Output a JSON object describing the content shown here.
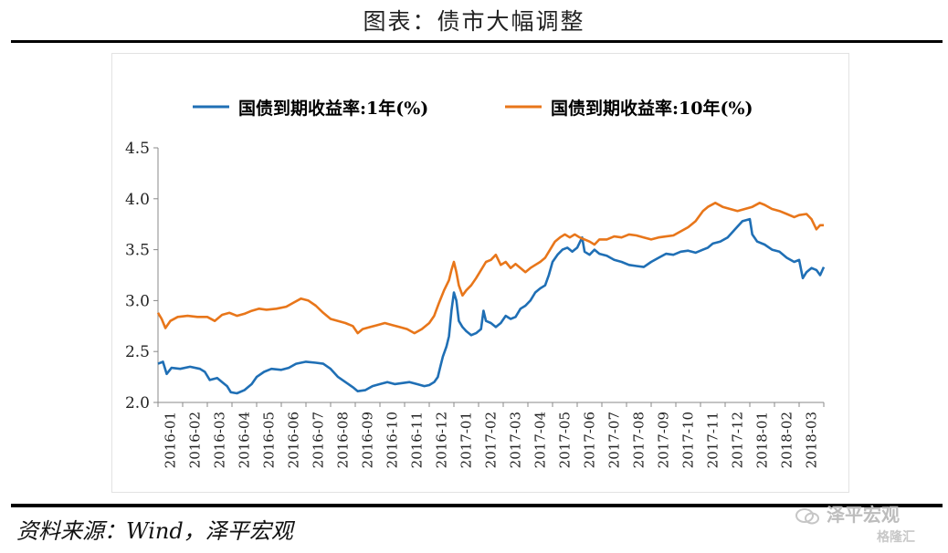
{
  "page": {
    "title": "图表：债市大幅调整",
    "source": "资料来源：Wind，泽平宏观",
    "watermark": "泽平宏观",
    "watermark_sub": "格隆汇"
  },
  "colors": {
    "series1": "#1f6fb5",
    "series2": "#e8761a"
  },
  "chart_data": {
    "type": "line",
    "title": "",
    "xlabel": "",
    "ylabel": "",
    "ylim": [
      2.0,
      4.5
    ],
    "yticks": [
      "2.0",
      "2.5",
      "3.0",
      "3.5",
      "4.0",
      "4.5"
    ],
    "categories": [
      "2016-01",
      "2016-02",
      "2016-03",
      "2016-04",
      "2016-05",
      "2016-06",
      "2016-07",
      "2016-08",
      "2016-09",
      "2016-10",
      "2016-11",
      "2016-12",
      "2017-01",
      "2017-02",
      "2017-03",
      "2017-04",
      "2017-05",
      "2017-06",
      "2017-07",
      "2017-08",
      "2017-09",
      "2017-10",
      "2017-11",
      "2017-12",
      "2018-01",
      "2018-02",
      "2018-03"
    ],
    "legend_position": "top",
    "series": [
      {
        "name": "国债到期收益率:1年(%)",
        "color": "#1f6fb5",
        "points": [
          [
            0.0,
            2.38
          ],
          [
            0.2,
            2.4
          ],
          [
            0.35,
            2.28
          ],
          [
            0.55,
            2.34
          ],
          [
            0.9,
            2.33
          ],
          [
            1.3,
            2.35
          ],
          [
            1.7,
            2.33
          ],
          [
            1.9,
            2.3
          ],
          [
            2.1,
            2.22
          ],
          [
            2.4,
            2.24
          ],
          [
            2.6,
            2.2
          ],
          [
            2.8,
            2.16
          ],
          [
            2.95,
            2.1
          ],
          [
            3.2,
            2.09
          ],
          [
            3.5,
            2.12
          ],
          [
            3.8,
            2.18
          ],
          [
            4.0,
            2.25
          ],
          [
            4.3,
            2.3
          ],
          [
            4.6,
            2.33
          ],
          [
            5.0,
            2.32
          ],
          [
            5.3,
            2.34
          ],
          [
            5.6,
            2.38
          ],
          [
            6.0,
            2.4
          ],
          [
            6.4,
            2.39
          ],
          [
            6.7,
            2.38
          ],
          [
            7.0,
            2.33
          ],
          [
            7.3,
            2.25
          ],
          [
            7.6,
            2.2
          ],
          [
            7.9,
            2.15
          ],
          [
            8.1,
            2.11
          ],
          [
            8.4,
            2.12
          ],
          [
            8.7,
            2.16
          ],
          [
            9.0,
            2.18
          ],
          [
            9.3,
            2.2
          ],
          [
            9.6,
            2.18
          ],
          [
            9.9,
            2.19
          ],
          [
            10.2,
            2.2
          ],
          [
            10.5,
            2.18
          ],
          [
            10.8,
            2.16
          ],
          [
            11.0,
            2.17
          ],
          [
            11.2,
            2.2
          ],
          [
            11.35,
            2.25
          ],
          [
            11.45,
            2.35
          ],
          [
            11.55,
            2.45
          ],
          [
            11.7,
            2.55
          ],
          [
            11.8,
            2.65
          ],
          [
            11.9,
            2.9
          ],
          [
            12.0,
            3.08
          ],
          [
            12.1,
            3.0
          ],
          [
            12.2,
            2.8
          ],
          [
            12.35,
            2.74
          ],
          [
            12.5,
            2.7
          ],
          [
            12.7,
            2.66
          ],
          [
            12.9,
            2.68
          ],
          [
            13.1,
            2.72
          ],
          [
            13.2,
            2.9
          ],
          [
            13.3,
            2.8
          ],
          [
            13.5,
            2.78
          ],
          [
            13.7,
            2.74
          ],
          [
            13.9,
            2.78
          ],
          [
            14.1,
            2.85
          ],
          [
            14.3,
            2.82
          ],
          [
            14.5,
            2.84
          ],
          [
            14.7,
            2.92
          ],
          [
            14.9,
            2.95
          ],
          [
            15.1,
            3.0
          ],
          [
            15.3,
            3.08
          ],
          [
            15.5,
            3.12
          ],
          [
            15.7,
            3.15
          ],
          [
            15.85,
            3.25
          ],
          [
            16.0,
            3.38
          ],
          [
            16.2,
            3.45
          ],
          [
            16.4,
            3.5
          ],
          [
            16.6,
            3.52
          ],
          [
            16.8,
            3.48
          ],
          [
            17.0,
            3.52
          ],
          [
            17.2,
            3.62
          ],
          [
            17.3,
            3.48
          ],
          [
            17.5,
            3.45
          ],
          [
            17.7,
            3.5
          ],
          [
            17.9,
            3.46
          ],
          [
            18.2,
            3.44
          ],
          [
            18.5,
            3.4
          ],
          [
            18.8,
            3.38
          ],
          [
            19.1,
            3.35
          ],
          [
            19.4,
            3.34
          ],
          [
            19.7,
            3.33
          ],
          [
            20.0,
            3.38
          ],
          [
            20.3,
            3.42
          ],
          [
            20.6,
            3.46
          ],
          [
            20.9,
            3.45
          ],
          [
            21.2,
            3.48
          ],
          [
            21.5,
            3.49
          ],
          [
            21.8,
            3.47
          ],
          [
            22.1,
            3.5
          ],
          [
            22.3,
            3.52
          ],
          [
            22.5,
            3.56
          ],
          [
            22.8,
            3.58
          ],
          [
            23.1,
            3.62
          ],
          [
            23.4,
            3.7
          ],
          [
            23.7,
            3.78
          ],
          [
            24.0,
            3.8
          ],
          [
            24.1,
            3.65
          ],
          [
            24.3,
            3.58
          ],
          [
            24.6,
            3.55
          ],
          [
            24.9,
            3.5
          ],
          [
            25.2,
            3.48
          ],
          [
            25.5,
            3.42
          ],
          [
            25.8,
            3.38
          ],
          [
            26.0,
            3.4
          ],
          [
            26.15,
            3.22
          ],
          [
            26.3,
            3.28
          ],
          [
            26.5,
            3.32
          ],
          [
            26.7,
            3.3
          ],
          [
            26.85,
            3.25
          ],
          [
            27.0,
            3.33
          ]
        ]
      },
      {
        "name": "国债到期收益率:10年(%)",
        "color": "#e8761a",
        "points": [
          [
            0.0,
            2.88
          ],
          [
            0.15,
            2.82
          ],
          [
            0.3,
            2.73
          ],
          [
            0.5,
            2.8
          ],
          [
            0.8,
            2.84
          ],
          [
            1.2,
            2.85
          ],
          [
            1.6,
            2.84
          ],
          [
            2.0,
            2.84
          ],
          [
            2.3,
            2.8
          ],
          [
            2.6,
            2.86
          ],
          [
            2.9,
            2.88
          ],
          [
            3.2,
            2.85
          ],
          [
            3.5,
            2.87
          ],
          [
            3.8,
            2.9
          ],
          [
            4.1,
            2.92
          ],
          [
            4.4,
            2.91
          ],
          [
            4.8,
            2.92
          ],
          [
            5.2,
            2.94
          ],
          [
            5.5,
            2.98
          ],
          [
            5.8,
            3.02
          ],
          [
            6.1,
            3.0
          ],
          [
            6.4,
            2.95
          ],
          [
            6.7,
            2.88
          ],
          [
            7.0,
            2.82
          ],
          [
            7.3,
            2.8
          ],
          [
            7.6,
            2.78
          ],
          [
            7.9,
            2.75
          ],
          [
            8.1,
            2.68
          ],
          [
            8.3,
            2.72
          ],
          [
            8.6,
            2.74
          ],
          [
            8.9,
            2.76
          ],
          [
            9.2,
            2.78
          ],
          [
            9.5,
            2.76
          ],
          [
            9.8,
            2.74
          ],
          [
            10.1,
            2.72
          ],
          [
            10.4,
            2.68
          ],
          [
            10.7,
            2.72
          ],
          [
            11.0,
            2.78
          ],
          [
            11.2,
            2.85
          ],
          [
            11.4,
            2.98
          ],
          [
            11.6,
            3.1
          ],
          [
            11.8,
            3.2
          ],
          [
            11.9,
            3.3
          ],
          [
            12.0,
            3.38
          ],
          [
            12.1,
            3.28
          ],
          [
            12.2,
            3.15
          ],
          [
            12.35,
            3.05
          ],
          [
            12.5,
            3.1
          ],
          [
            12.7,
            3.15
          ],
          [
            12.9,
            3.22
          ],
          [
            13.1,
            3.3
          ],
          [
            13.3,
            3.38
          ],
          [
            13.5,
            3.4
          ],
          [
            13.7,
            3.45
          ],
          [
            13.9,
            3.35
          ],
          [
            14.1,
            3.38
          ],
          [
            14.3,
            3.32
          ],
          [
            14.5,
            3.36
          ],
          [
            14.7,
            3.32
          ],
          [
            14.9,
            3.28
          ],
          [
            15.1,
            3.32
          ],
          [
            15.3,
            3.35
          ],
          [
            15.5,
            3.38
          ],
          [
            15.7,
            3.42
          ],
          [
            15.9,
            3.5
          ],
          [
            16.1,
            3.58
          ],
          [
            16.3,
            3.62
          ],
          [
            16.5,
            3.65
          ],
          [
            16.7,
            3.62
          ],
          [
            16.9,
            3.65
          ],
          [
            17.1,
            3.62
          ],
          [
            17.3,
            3.6
          ],
          [
            17.5,
            3.58
          ],
          [
            17.7,
            3.55
          ],
          [
            17.9,
            3.6
          ],
          [
            18.2,
            3.6
          ],
          [
            18.5,
            3.63
          ],
          [
            18.8,
            3.62
          ],
          [
            19.1,
            3.65
          ],
          [
            19.4,
            3.64
          ],
          [
            19.7,
            3.62
          ],
          [
            20.0,
            3.6
          ],
          [
            20.3,
            3.62
          ],
          [
            20.6,
            3.63
          ],
          [
            20.9,
            3.64
          ],
          [
            21.2,
            3.68
          ],
          [
            21.5,
            3.72
          ],
          [
            21.8,
            3.78
          ],
          [
            22.1,
            3.88
          ],
          [
            22.3,
            3.92
          ],
          [
            22.6,
            3.96
          ],
          [
            22.9,
            3.92
          ],
          [
            23.2,
            3.9
          ],
          [
            23.5,
            3.88
          ],
          [
            23.8,
            3.9
          ],
          [
            24.1,
            3.92
          ],
          [
            24.4,
            3.96
          ],
          [
            24.6,
            3.94
          ],
          [
            24.9,
            3.9
          ],
          [
            25.2,
            3.88
          ],
          [
            25.5,
            3.85
          ],
          [
            25.8,
            3.82
          ],
          [
            26.0,
            3.84
          ],
          [
            26.3,
            3.85
          ],
          [
            26.5,
            3.8
          ],
          [
            26.7,
            3.7
          ],
          [
            26.85,
            3.74
          ],
          [
            27.0,
            3.74
          ]
        ]
      }
    ]
  }
}
